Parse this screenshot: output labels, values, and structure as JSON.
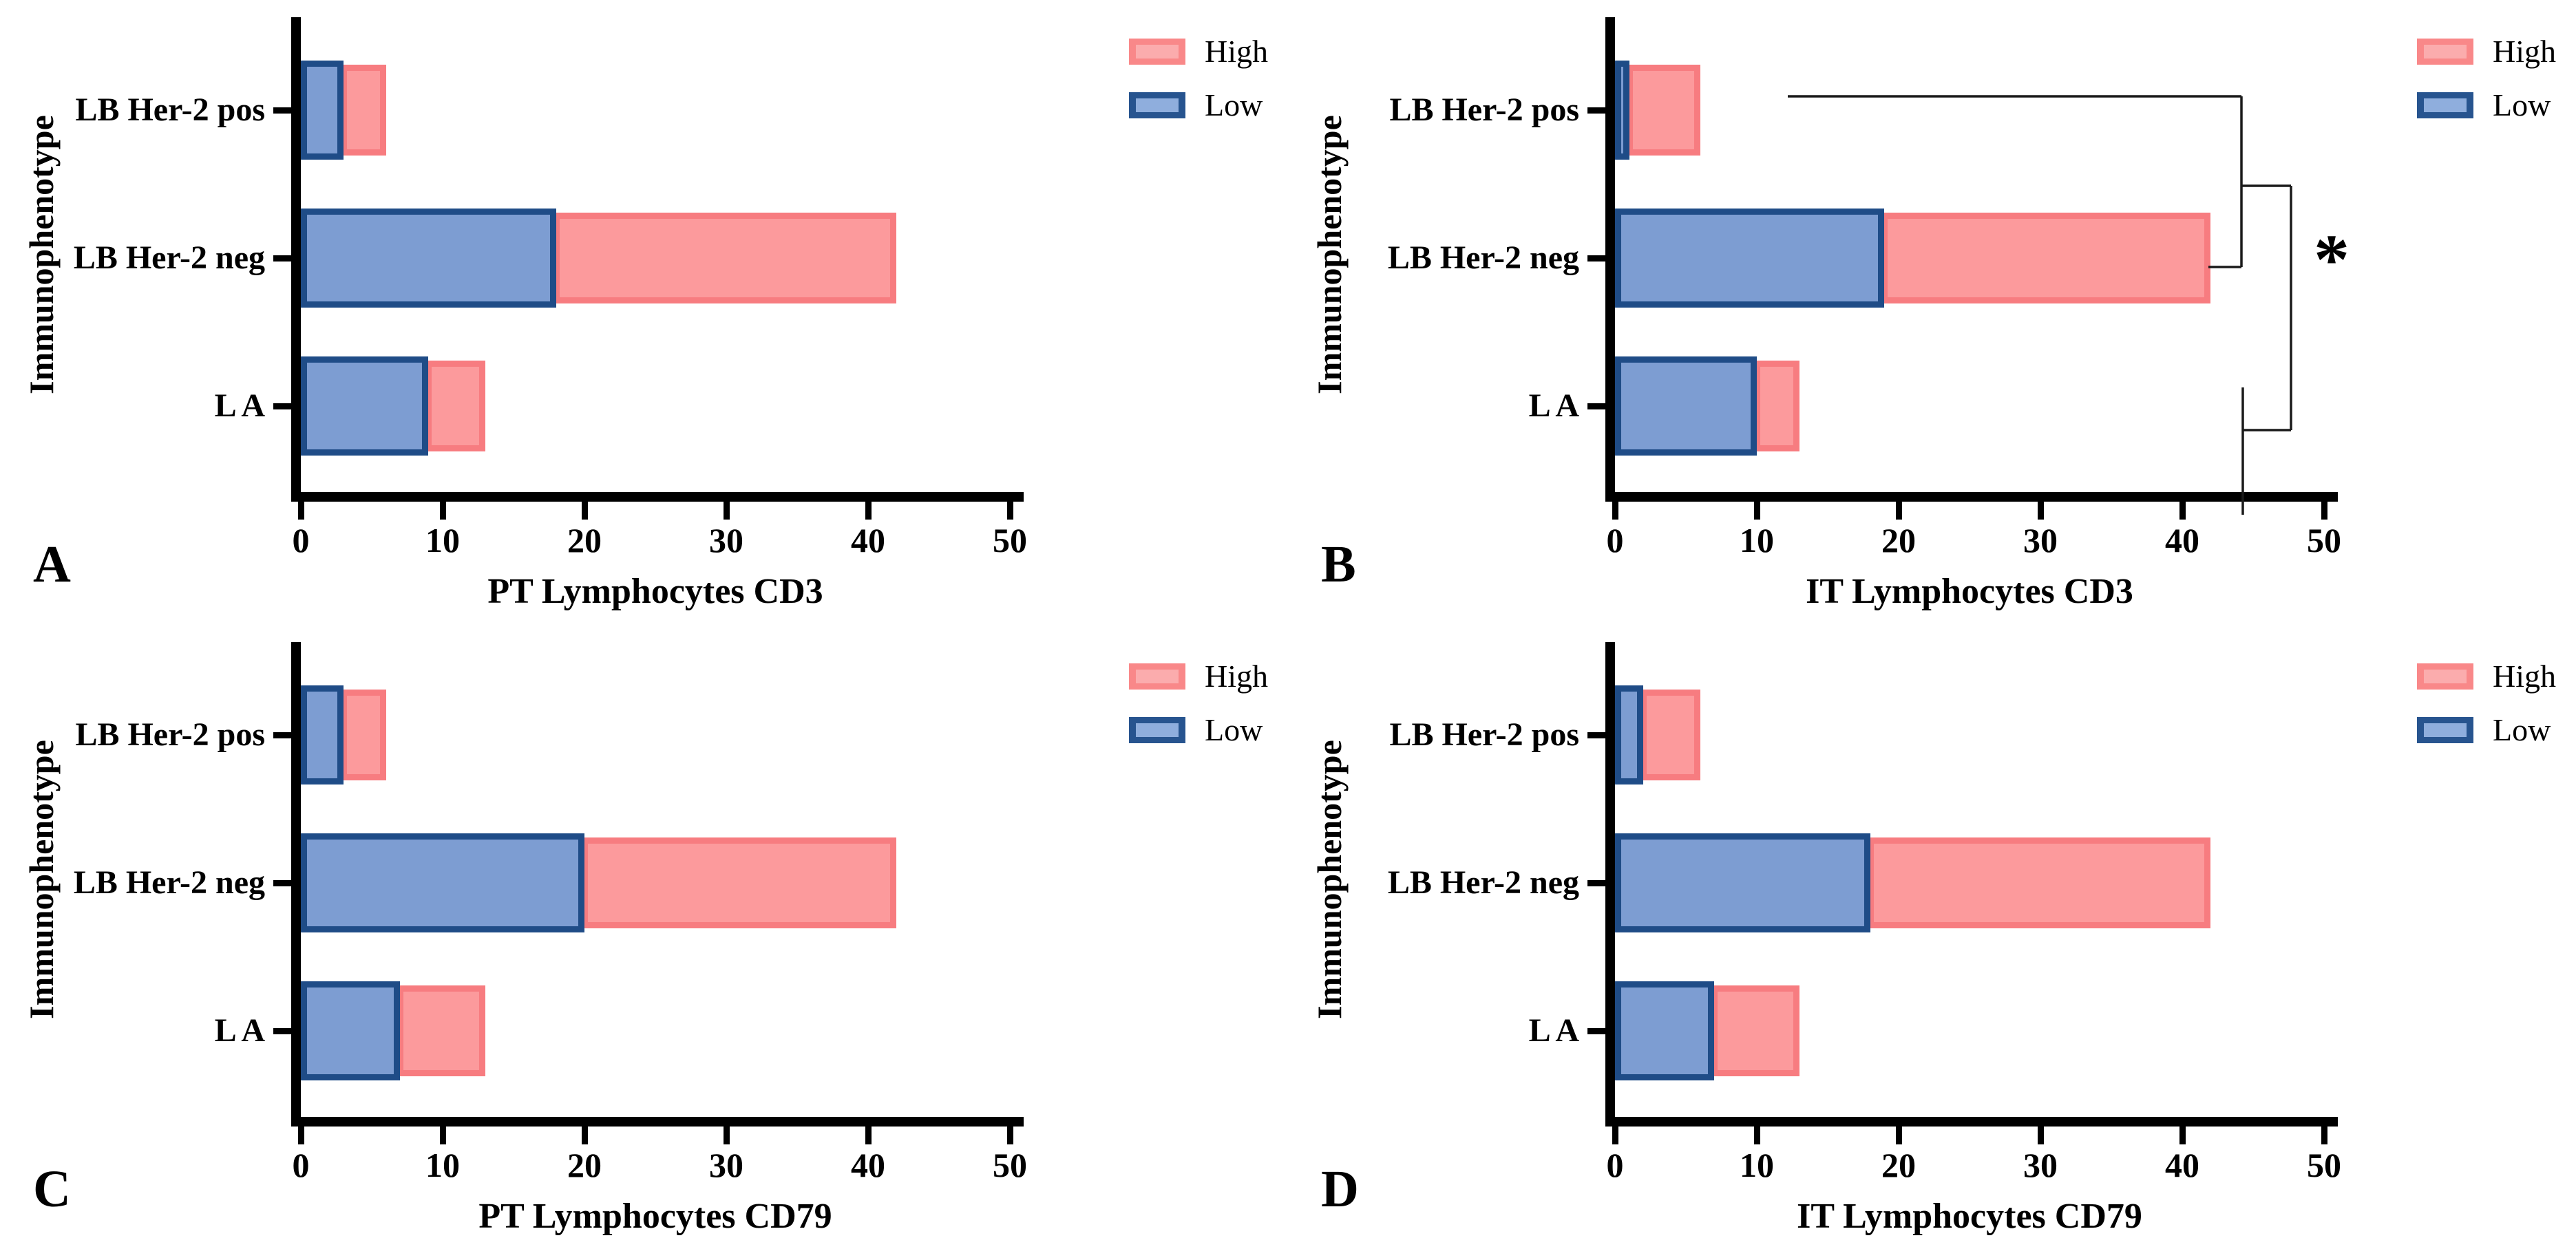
{
  "figure": {
    "y_axis_label": "Immunophenotype",
    "legend": {
      "items": [
        {
          "label": "High",
          "swatch_outer": "#f98889",
          "swatch_inner": "#fbacad"
        },
        {
          "label": "Low",
          "swatch_outer": "#27548f",
          "swatch_inner": "#8faedd"
        }
      ]
    },
    "colors": {
      "high_fill": "#fc9a9c",
      "high_border": "#f77c80",
      "low_fill": "#7d9dd2",
      "low_border": "#1f4c87",
      "axis": "#000000",
      "background": "#ffffff"
    }
  },
  "chart_data": [
    {
      "letter": "A",
      "type": "bar",
      "orientation": "horizontal",
      "stacked": true,
      "xlabel": "PT Lymphocytes CD3",
      "ylabel": "Immunophenotype",
      "categories": [
        "LB Her-2 pos",
        "LB Her-2 neg",
        "L A"
      ],
      "series": [
        {
          "name": "Low",
          "values": [
            3,
            18,
            9
          ]
        },
        {
          "name": "High",
          "values": [
            3,
            24,
            4
          ]
        }
      ],
      "totals": [
        6,
        42,
        13
      ],
      "xlim": [
        0,
        50
      ],
      "xticks": [
        "0",
        "10",
        "20",
        "30",
        "40",
        "50"
      ],
      "legend_position": "top-right",
      "significance": null
    },
    {
      "letter": "B",
      "type": "bar",
      "orientation": "horizontal",
      "stacked": true,
      "xlabel": "IT Lymphocytes CD3",
      "ylabel": "Immunophenotype",
      "categories": [
        "LB Her-2 pos",
        "LB Her-2 neg",
        "L A"
      ],
      "series": [
        {
          "name": "Low",
          "values": [
            1,
            19,
            10
          ]
        },
        {
          "name": "High",
          "values": [
            5,
            23,
            3
          ]
        }
      ],
      "totals": [
        6,
        42,
        13
      ],
      "xlim": [
        0,
        50
      ],
      "xticks": [
        "0",
        "10",
        "20",
        "30",
        "40",
        "50"
      ],
      "legend_position": "top-right",
      "significance": {
        "symbol": "*",
        "compares": [
          "LB Her-2 pos vs LB Her-2 neg",
          "LB Her-2 neg vs L A"
        ]
      }
    },
    {
      "letter": "C",
      "type": "bar",
      "orientation": "horizontal",
      "stacked": true,
      "xlabel": "PT Lymphocytes CD79",
      "ylabel": "Immunophenotype",
      "categories": [
        "LB Her-2 pos",
        "LB Her-2 neg",
        "L A"
      ],
      "series": [
        {
          "name": "Low",
          "values": [
            3,
            20,
            7
          ]
        },
        {
          "name": "High",
          "values": [
            3,
            22,
            6
          ]
        }
      ],
      "totals": [
        6,
        42,
        13
      ],
      "xlim": [
        0,
        50
      ],
      "xticks": [
        "0",
        "10",
        "20",
        "30",
        "40",
        "50"
      ],
      "legend_position": "top-right",
      "significance": null
    },
    {
      "letter": "D",
      "type": "bar",
      "orientation": "horizontal",
      "stacked": true,
      "xlabel": "IT Lymphocytes CD79",
      "ylabel": "Immunophenotype",
      "categories": [
        "LB Her-2 pos",
        "LB Her-2 neg",
        "L A"
      ],
      "series": [
        {
          "name": "Low",
          "values": [
            2,
            18,
            7
          ]
        },
        {
          "name": "High",
          "values": [
            4,
            24,
            6
          ]
        }
      ],
      "totals": [
        6,
        42,
        13
      ],
      "xlim": [
        0,
        50
      ],
      "xticks": [
        "0",
        "10",
        "20",
        "30",
        "40",
        "50"
      ],
      "legend_position": "top-right",
      "significance": null
    }
  ]
}
